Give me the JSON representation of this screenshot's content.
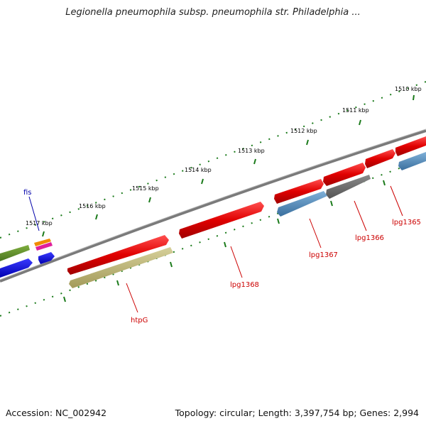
{
  "title": "Legionella pneumophila subsp. pneumophila str. Philadelphia ...",
  "ticks_outer": [
    "1510 kbp",
    "1511 kbp",
    "1512 kbp",
    "1513 kbp",
    "1514 kbp",
    "1515 kbp",
    "1516 kbp",
    "1517 kbp"
  ],
  "gene_labels": {
    "fis": "fis",
    "htpG": "htpG",
    "lpg1368": "lpg1368",
    "lpg1367": "lpg1367",
    "lpg1366": "lpg1366",
    "lpg1365": "lpg1365"
  },
  "colors": {
    "backbone": "#7a7a7a",
    "gene_red": "#e00000",
    "gene_blue": "#4f86b8",
    "gene_gray": "#666666",
    "gene_olive": "#b8b070",
    "gene_green": "#5a8a2a",
    "gene_darkblue": "#0000e0",
    "tick_green": "#1a7a1a",
    "label_red": "#cc0000",
    "label_blue": "#0000aa"
  },
  "footer": {
    "accession": "Accession: NC_002942",
    "topology": "Topology: circular; Length: 3,397,754 bp; Genes: 2,994"
  }
}
